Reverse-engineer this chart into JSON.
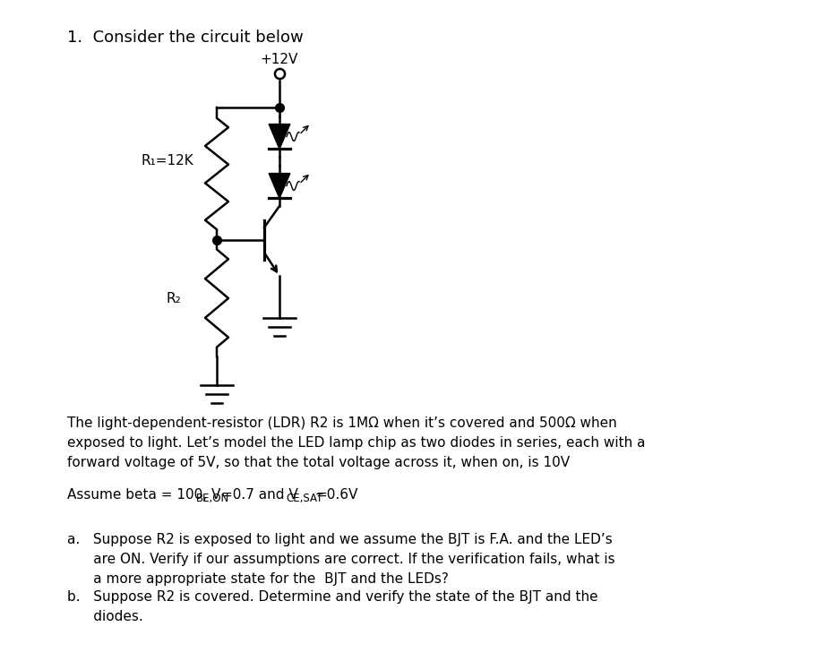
{
  "title": "1.  Consider the circuit below",
  "voltage_label": "+12V",
  "R1_label": "R₁=12K",
  "R2_label": "R₂",
  "paragraph1_line1": "The light-dependent-resistor (LDR) R2 is 1MΩ when it’s covered and 500Ω when",
  "paragraph1_line2": "exposed to light. Let’s model the LED lamp chip as two diodes in series, each with a",
  "paragraph1_line3": "forward voltage of 5V, so that the total voltage across it, when on, is 10V",
  "assume_prefix": "Assume beta = 100, V",
  "assume_sub1": "BE,ON",
  "assume_mid": "=0.7 and V",
  "assume_sub2": "CE,SAT",
  "assume_end": "=0.6V",
  "part_a_line1": "a.   Suppose R2 is exposed to light and we assume the BJT is F.A. and the LED’s",
  "part_a_line2": "      are ON. Verify if our assumptions are correct. If the verification fails, what is",
  "part_a_line3": "      a more appropriate state for the  BJT and the LEDs?",
  "part_b_line1": "b.   Suppose R2 is covered. Determine and verify the state of the BJT and the",
  "part_b_line2": "      diodes.",
  "bg_color": "#ffffff",
  "text_color": "#000000",
  "circuit_color": "#000000",
  "font_size_title": 13,
  "font_size_body": 11.0
}
